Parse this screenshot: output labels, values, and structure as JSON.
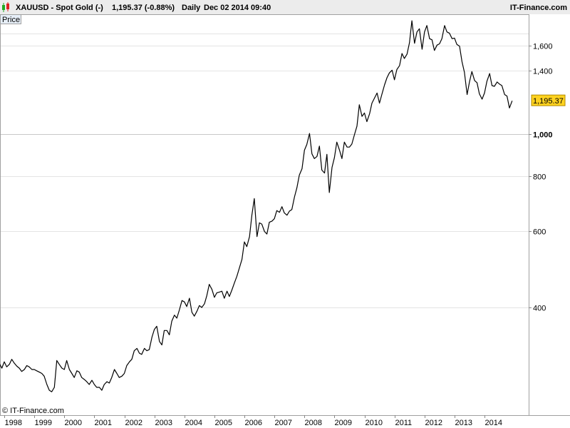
{
  "header": {
    "symbol": "XAUUSD - Spot Gold (-)",
    "quote": "1,195.37 (-0.88%)",
    "interval": "Daily",
    "timestamp": "Dec 02 2014 09:40",
    "brand": "IT-Finance.com"
  },
  "panel_label": "Price",
  "copyright": "© IT-Finance.com",
  "colors": {
    "line": "#000000",
    "grid": "#e4e4e4",
    "frame": "#a0a0a0",
    "price_tag_bg": "#ffd21f",
    "candle_up": "#22aa22",
    "candle_down": "#dd2222"
  },
  "icons": {
    "header_icon": "candlestick-icon"
  },
  "chart_data": {
    "type": "line",
    "title": "XAUUSD - Spot Gold (-)",
    "xlabel": "",
    "ylabel": "",
    "y_scale": "log",
    "xlim": [
      1997.7,
      2014.95
    ],
    "ylim": [
      235,
      1950
    ],
    "grid": true,
    "legend": "none",
    "x_ticks": [
      "1998",
      "1999",
      "2000",
      "2001",
      "2002",
      "2003",
      "2004",
      "2005",
      "2006",
      "2007",
      "2008",
      "2009",
      "2010",
      "2011",
      "2012",
      "2013",
      "2014"
    ],
    "y_ticks": [
      {
        "value": 400,
        "label": "400",
        "bold": false
      },
      {
        "value": 600,
        "label": "600",
        "bold": false
      },
      {
        "value": 800,
        "label": "800",
        "bold": false
      },
      {
        "value": 1000,
        "label": "1,000",
        "bold": true
      },
      {
        "value": 1400,
        "label": "1,400",
        "bold": false
      },
      {
        "value": 1600,
        "label": "1,600",
        "bold": false
      }
    ],
    "last_price": {
      "value": 1195.37,
      "label": "1,195.37"
    },
    "series": [
      {
        "name": "",
        "points": [
          [
            1997.75,
            302
          ],
          [
            1997.83,
            298
          ],
          [
            1997.92,
            290
          ],
          [
            1998.0,
            300
          ],
          [
            1998.08,
            292
          ],
          [
            1998.17,
            296
          ],
          [
            1998.25,
            304
          ],
          [
            1998.33,
            298
          ],
          [
            1998.42,
            293
          ],
          [
            1998.5,
            290
          ],
          [
            1998.58,
            285
          ],
          [
            1998.67,
            288
          ],
          [
            1998.75,
            294
          ],
          [
            1998.83,
            292
          ],
          [
            1998.92,
            288
          ],
          [
            1999.0,
            288
          ],
          [
            1999.08,
            286
          ],
          [
            1999.17,
            284
          ],
          [
            1999.25,
            282
          ],
          [
            1999.33,
            278
          ],
          [
            1999.42,
            266
          ],
          [
            1999.5,
            258
          ],
          [
            1999.58,
            256
          ],
          [
            1999.67,
            262
          ],
          [
            1999.75,
            302
          ],
          [
            1999.83,
            296
          ],
          [
            1999.92,
            290
          ],
          [
            2000.0,
            288
          ],
          [
            2000.08,
            302
          ],
          [
            2000.17,
            288
          ],
          [
            2000.25,
            282
          ],
          [
            2000.33,
            276
          ],
          [
            2000.42,
            286
          ],
          [
            2000.5,
            284
          ],
          [
            2000.58,
            276
          ],
          [
            2000.67,
            273
          ],
          [
            2000.75,
            270
          ],
          [
            2000.83,
            266
          ],
          [
            2000.92,
            272
          ],
          [
            2001.0,
            266
          ],
          [
            2001.08,
            262
          ],
          [
            2001.17,
            262
          ],
          [
            2001.25,
            258
          ],
          [
            2001.33,
            266
          ],
          [
            2001.42,
            270
          ],
          [
            2001.5,
            268
          ],
          [
            2001.58,
            276
          ],
          [
            2001.67,
            288
          ],
          [
            2001.75,
            282
          ],
          [
            2001.83,
            276
          ],
          [
            2001.92,
            278
          ],
          [
            2002.0,
            282
          ],
          [
            2002.08,
            294
          ],
          [
            2002.17,
            300
          ],
          [
            2002.25,
            304
          ],
          [
            2002.33,
            318
          ],
          [
            2002.42,
            322
          ],
          [
            2002.5,
            314
          ],
          [
            2002.58,
            312
          ],
          [
            2002.67,
            322
          ],
          [
            2002.75,
            318
          ],
          [
            2002.83,
            320
          ],
          [
            2002.92,
            342
          ],
          [
            2003.0,
            356
          ],
          [
            2003.08,
            362
          ],
          [
            2003.17,
            334
          ],
          [
            2003.25,
            328
          ],
          [
            2003.33,
            354
          ],
          [
            2003.42,
            354
          ],
          [
            2003.5,
            346
          ],
          [
            2003.58,
            372
          ],
          [
            2003.67,
            384
          ],
          [
            2003.75,
            378
          ],
          [
            2003.83,
            394
          ],
          [
            2003.92,
            415
          ],
          [
            2004.0,
            412
          ],
          [
            2004.08,
            402
          ],
          [
            2004.17,
            420
          ],
          [
            2004.25,
            390
          ],
          [
            2004.33,
            382
          ],
          [
            2004.42,
            392
          ],
          [
            2004.5,
            404
          ],
          [
            2004.58,
            400
          ],
          [
            2004.67,
            408
          ],
          [
            2004.75,
            426
          ],
          [
            2004.83,
            452
          ],
          [
            2004.92,
            440
          ],
          [
            2005.0,
            422
          ],
          [
            2005.08,
            432
          ],
          [
            2005.17,
            434
          ],
          [
            2005.25,
            436
          ],
          [
            2005.33,
            420
          ],
          [
            2005.42,
            436
          ],
          [
            2005.5,
            424
          ],
          [
            2005.58,
            438
          ],
          [
            2005.67,
            456
          ],
          [
            2005.75,
            472
          ],
          [
            2005.83,
            492
          ],
          [
            2005.92,
            516
          ],
          [
            2006.0,
            566
          ],
          [
            2006.08,
            552
          ],
          [
            2006.17,
            582
          ],
          [
            2006.25,
            652
          ],
          [
            2006.33,
            712
          ],
          [
            2006.42,
            582
          ],
          [
            2006.5,
            626
          ],
          [
            2006.58,
            622
          ],
          [
            2006.67,
            598
          ],
          [
            2006.75,
            590
          ],
          [
            2006.83,
            628
          ],
          [
            2006.92,
            632
          ],
          [
            2007.0,
            640
          ],
          [
            2007.08,
            668
          ],
          [
            2007.17,
            662
          ],
          [
            2007.25,
            682
          ],
          [
            2007.33,
            660
          ],
          [
            2007.42,
            652
          ],
          [
            2007.5,
            666
          ],
          [
            2007.58,
            672
          ],
          [
            2007.67,
            718
          ],
          [
            2007.75,
            754
          ],
          [
            2007.83,
            806
          ],
          [
            2007.92,
            834
          ],
          [
            2008.0,
            920
          ],
          [
            2008.08,
            948
          ],
          [
            2008.17,
            1005
          ],
          [
            2008.25,
            902
          ],
          [
            2008.33,
            880
          ],
          [
            2008.42,
            890
          ],
          [
            2008.5,
            940
          ],
          [
            2008.58,
            828
          ],
          [
            2008.67,
            815
          ],
          [
            2008.75,
            900
          ],
          [
            2008.83,
            735
          ],
          [
            2008.92,
            840
          ],
          [
            2009.0,
            885
          ],
          [
            2009.08,
            960
          ],
          [
            2009.17,
            920
          ],
          [
            2009.25,
            880
          ],
          [
            2009.33,
            960
          ],
          [
            2009.42,
            935
          ],
          [
            2009.5,
            935
          ],
          [
            2009.58,
            950
          ],
          [
            2009.67,
            1000
          ],
          [
            2009.75,
            1045
          ],
          [
            2009.83,
            1170
          ],
          [
            2009.92,
            1100
          ],
          [
            2010.0,
            1120
          ],
          [
            2010.08,
            1070
          ],
          [
            2010.17,
            1115
          ],
          [
            2010.25,
            1180
          ],
          [
            2010.33,
            1210
          ],
          [
            2010.42,
            1245
          ],
          [
            2010.5,
            1180
          ],
          [
            2010.58,
            1235
          ],
          [
            2010.67,
            1300
          ],
          [
            2010.75,
            1350
          ],
          [
            2010.83,
            1385
          ],
          [
            2010.92,
            1405
          ],
          [
            2011.0,
            1335
          ],
          [
            2011.08,
            1410
          ],
          [
            2011.17,
            1440
          ],
          [
            2011.25,
            1535
          ],
          [
            2011.33,
            1495
          ],
          [
            2011.42,
            1530
          ],
          [
            2011.5,
            1625
          ],
          [
            2011.58,
            1825
          ],
          [
            2011.67,
            1620
          ],
          [
            2011.75,
            1720
          ],
          [
            2011.83,
            1750
          ],
          [
            2011.92,
            1570
          ],
          [
            2012.0,
            1720
          ],
          [
            2012.08,
            1780
          ],
          [
            2012.17,
            1660
          ],
          [
            2012.25,
            1650
          ],
          [
            2012.33,
            1560
          ],
          [
            2012.42,
            1605
          ],
          [
            2012.5,
            1615
          ],
          [
            2012.58,
            1660
          ],
          [
            2012.67,
            1780
          ],
          [
            2012.75,
            1720
          ],
          [
            2012.83,
            1710
          ],
          [
            2012.92,
            1660
          ],
          [
            2013.0,
            1665
          ],
          [
            2013.08,
            1610
          ],
          [
            2013.17,
            1595
          ],
          [
            2013.25,
            1470
          ],
          [
            2013.33,
            1390
          ],
          [
            2013.42,
            1235
          ],
          [
            2013.5,
            1320
          ],
          [
            2013.58,
            1395
          ],
          [
            2013.67,
            1330
          ],
          [
            2013.75,
            1315
          ],
          [
            2013.83,
            1240
          ],
          [
            2013.92,
            1205
          ],
          [
            2014.0,
            1245
          ],
          [
            2014.08,
            1325
          ],
          [
            2014.17,
            1380
          ],
          [
            2014.25,
            1295
          ],
          [
            2014.33,
            1290
          ],
          [
            2014.42,
            1320
          ],
          [
            2014.5,
            1305
          ],
          [
            2014.58,
            1295
          ],
          [
            2014.67,
            1235
          ],
          [
            2014.75,
            1225
          ],
          [
            2014.83,
            1150
          ],
          [
            2014.92,
            1195
          ]
        ]
      }
    ]
  }
}
